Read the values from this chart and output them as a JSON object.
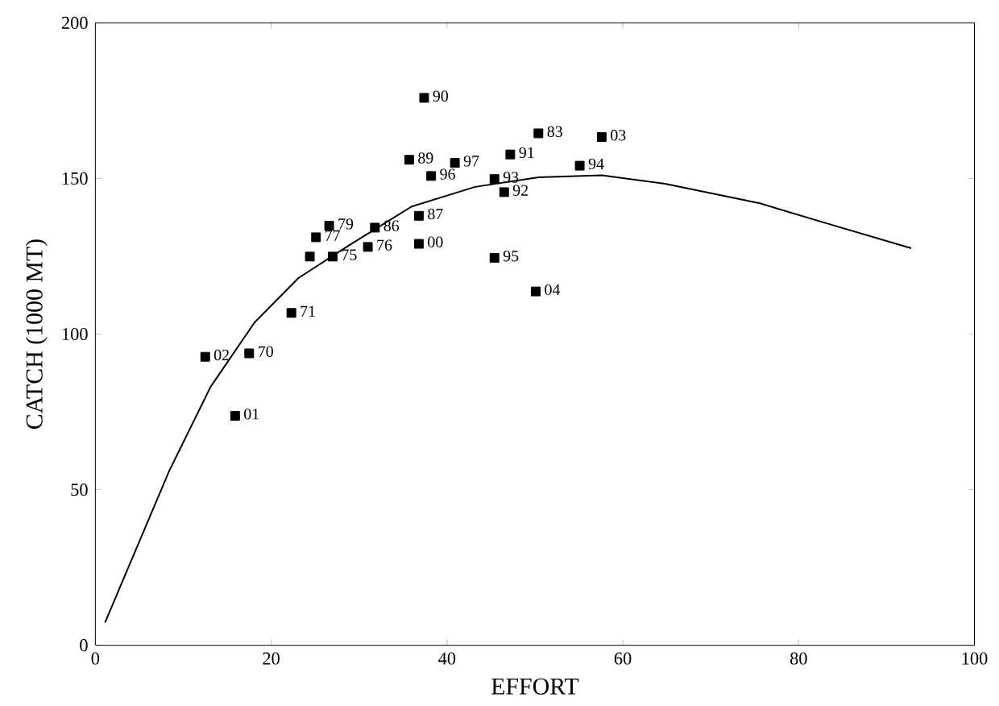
{
  "chart_data": {
    "type": "scatter",
    "xlabel": "EFFORT",
    "ylabel": "CATCH (1000 MT)",
    "xlim": [
      0,
      100
    ],
    "ylim": [
      0,
      200
    ],
    "xticks": [
      0,
      20,
      40,
      60,
      80,
      100
    ],
    "yticks": [
      0,
      50,
      100,
      150,
      200
    ],
    "grid": false,
    "marker": "square",
    "series": [
      {
        "color": "#000000",
        "x": [
          12.5,
          17.5,
          15.9,
          22.3,
          25.1,
          26.6,
          24.4,
          27.0,
          31.0,
          31.8,
          36.8,
          36.8,
          35.7,
          37.4,
          47.2,
          46.5,
          45.4,
          55.1,
          45.4,
          38.2,
          40.9,
          50.4,
          57.6,
          50.1
        ],
        "values": [
          92.7,
          93.8,
          73.7,
          106.8,
          131.1,
          134.8,
          124.9,
          124.9,
          128.0,
          134.2,
          138.0,
          129.0,
          156.0,
          175.9,
          157.7,
          145.6,
          149.8,
          154.1,
          124.5,
          150.8,
          155.0,
          164.5,
          163.3,
          113.7
        ]
      },
      {
        "type": "line",
        "color": "#000000",
        "marker": "none",
        "x": [
          1.1,
          8.4,
          13.1,
          18.1,
          23.1,
          28.9,
          36.0,
          43.2,
          50.4,
          57.6,
          64.8,
          75.6,
          82.8,
          92.8
        ],
        "values": [
          7.3,
          56,
          83,
          103.7,
          118,
          128.6,
          141,
          147.3,
          150.4,
          151,
          148.3,
          142,
          135.9,
          127.6
        ]
      }
    ],
    "annotations": [
      {
        "text": "02",
        "x": 12.5,
        "y": 92.7
      },
      {
        "text": "70",
        "x": 17.5,
        "y": 93.8
      },
      {
        "text": "01",
        "x": 15.9,
        "y": 73.7
      },
      {
        "text": "71",
        "x": 22.3,
        "y": 106.8
      },
      {
        "text": "77",
        "x": 25.1,
        "y": 131.1
      },
      {
        "text": "79",
        "x": 26.6,
        "y": 134.8
      },
      {
        "text": "75",
        "x": 27.0,
        "y": 124.9
      },
      {
        "text": "76",
        "x": 31.0,
        "y": 128.0
      },
      {
        "text": "86",
        "x": 31.8,
        "y": 134.2
      },
      {
        "text": "87",
        "x": 36.8,
        "y": 138.0
      },
      {
        "text": "00",
        "x": 36.8,
        "y": 129.0
      },
      {
        "text": "89",
        "x": 35.7,
        "y": 156.0
      },
      {
        "text": "90",
        "x": 37.4,
        "y": 175.9
      },
      {
        "text": "91",
        "x": 47.2,
        "y": 157.7
      },
      {
        "text": "92",
        "x": 46.5,
        "y": 145.6
      },
      {
        "text": "93",
        "x": 45.4,
        "y": 149.8
      },
      {
        "text": "94",
        "x": 55.1,
        "y": 154.1
      },
      {
        "text": "95",
        "x": 45.4,
        "y": 124.5
      },
      {
        "text": "96",
        "x": 38.2,
        "y": 150.8
      },
      {
        "text": "97",
        "x": 40.9,
        "y": 155.0
      },
      {
        "text": "83",
        "x": 50.4,
        "y": 164.5
      },
      {
        "text": "03",
        "x": 57.6,
        "y": 163.3
      },
      {
        "text": "04",
        "x": 50.1,
        "y": 113.7
      }
    ]
  }
}
